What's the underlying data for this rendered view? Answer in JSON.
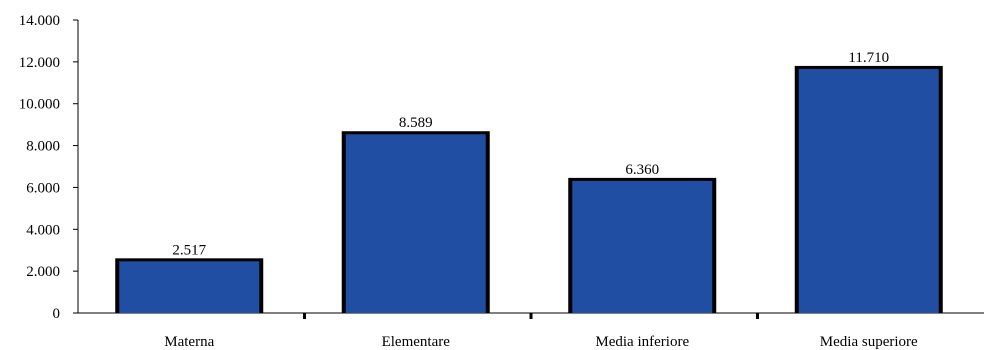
{
  "chart_data": {
    "type": "bar",
    "title": "",
    "xlabel": "",
    "ylabel": "",
    "categories": [
      "Materna",
      "Elementare",
      "Media inferiore",
      "Media superiore"
    ],
    "values": [
      2517,
      8589,
      6360,
      11710
    ],
    "value_labels": [
      "2.517",
      "8.589",
      "6.360",
      "11.710"
    ],
    "ylim": [
      0,
      14000
    ],
    "y_ticks": [
      0,
      2000,
      4000,
      6000,
      8000,
      10000,
      12000,
      14000
    ],
    "y_tick_labels": [
      "0",
      "2.000",
      "4.000",
      "6.000",
      "8.000",
      "10.000",
      "12.000",
      "14.000"
    ],
    "grid": false,
    "legend": "none",
    "colors": {
      "bar": "#1f4ea3",
      "bar_edge": "#000000",
      "axis": "#000000"
    }
  }
}
